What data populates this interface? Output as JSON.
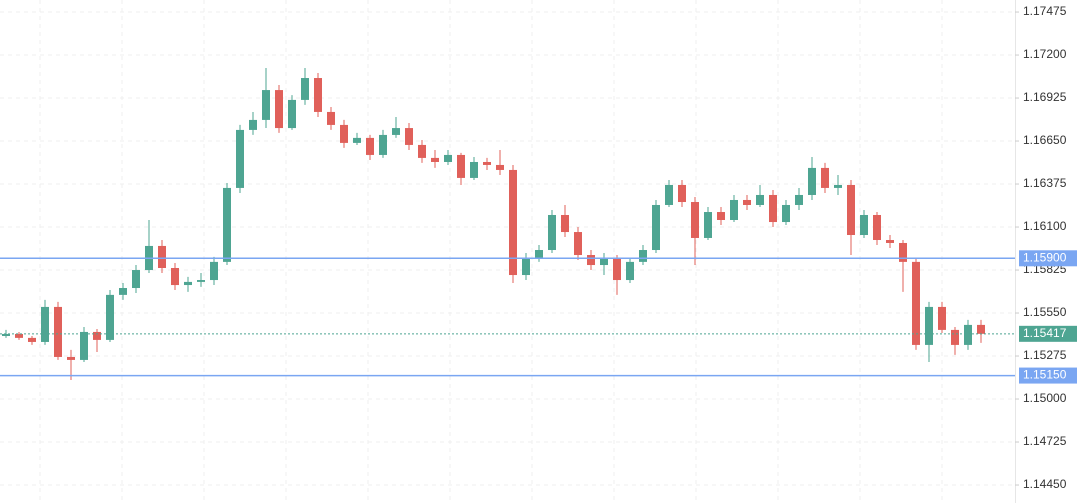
{
  "chart_data": {
    "type": "candlestick",
    "up_color": "#4ea592",
    "down_color": "#e0605a",
    "ylim": [
      1.14335,
      1.17552
    ],
    "yticks": [
      1.17475,
      {
        "value": 1.172,
        "label": "1.17200"
      },
      1.16925,
      {
        "value": 1.1665,
        "label": "1.16650"
      },
      1.16375,
      {
        "value": 1.161,
        "label": "1.16100"
      },
      1.15825,
      {
        "value": 1.1555,
        "label": "1.15550"
      },
      1.15275,
      {
        "value": 1.15,
        "label": "1.15000"
      },
      1.14725,
      {
        "value": 1.1445,
        "label": "1.14450"
      }
    ],
    "grid": true,
    "open": [
      1.15403,
      1.15416,
      1.15391,
      1.15365,
      1.15589,
      1.15269,
      1.1525,
      1.15429,
      1.15378,
      1.15666,
      1.1571,
      1.15825,
      1.15979,
      1.15838,
      1.15729,
      1.15749,
      1.15761,
      1.15877,
      1.1635,
      1.16721,
      1.16785,
      1.16976,
      1.16733,
      1.16913,
      1.17053,
      1.16836,
      1.16753,
      1.16638,
      1.1667,
      1.16561,
      1.16689,
      1.16733,
      1.16625,
      1.16542,
      1.16516,
      1.16561,
      1.16414,
      1.16516,
      1.16497,
      1.16465,
      1.15793,
      1.15902,
      1.15953,
      1.16177,
      1.16068,
      1.15921,
      1.15857,
      1.15902,
      1.15761,
      1.15877,
      1.15953,
      1.16241,
      1.16369,
      1.1626,
      1.1603,
      1.16196,
      1.16145,
      1.16273,
      1.16241,
      1.16305,
      1.16132,
      1.16241,
      1.16305,
      1.16478,
      1.1635,
      1.16369,
      1.16049,
      1.16177,
      1.16017,
      1.15998,
      1.15877,
      1.15346,
      1.15589,
      1.15442,
      1.15346,
      1.15474
    ],
    "high": [
      1.15442,
      1.15429,
      1.15403,
      1.15634,
      1.15621,
      1.15314,
      1.15461,
      1.15448,
      1.15697,
      1.15742,
      1.15857,
      1.16145,
      1.16017,
      1.1587,
      1.15781,
      1.15806,
      1.15909,
      1.16382,
      1.16753,
      1.16836,
      1.17117,
      1.17008,
      1.16944,
      1.17117,
      1.17085,
      1.16868,
      1.16785,
      1.16702,
      1.16689,
      1.16721,
      1.16804,
      1.16765,
      1.16657,
      1.16593,
      1.16593,
      1.16574,
      1.16548,
      1.16542,
      1.16593,
      1.16497,
      1.15934,
      1.15985,
      1.16209,
      1.16241,
      1.161,
      1.15953,
      1.15934,
      1.15921,
      1.15902,
      1.15985,
      1.16273,
      1.16401,
      1.16401,
      1.16292,
      1.16228,
      1.16228,
      1.16305,
      1.16305,
      1.16369,
      1.16337,
      1.16273,
      1.1635,
      1.16548,
      1.1651,
      1.16433,
      1.16401,
      1.16209,
      1.16196,
      1.16049,
      1.16017,
      1.15902,
      1.15621,
      1.15621,
      1.15461,
      1.15506,
      1.15506
    ],
    "low": [
      1.15391,
      1.15378,
      1.15346,
      1.15346,
      1.1525,
      1.15122,
      1.15237,
      1.15301,
      1.15365,
      1.15634,
      1.15678,
      1.15806,
      1.15806,
      1.15697,
      1.15685,
      1.15717,
      1.15729,
      1.15857,
      1.16318,
      1.16689,
      1.16733,
      1.16702,
      1.16721,
      1.16881,
      1.16804,
      1.16721,
      1.16606,
      1.16625,
      1.16529,
      1.16542,
      1.1667,
      1.16593,
      1.1651,
      1.16478,
      1.16497,
      1.16369,
      1.16401,
      1.16465,
      1.16433,
      1.15742,
      1.15761,
      1.15877,
      1.15934,
      1.16036,
      1.15889,
      1.15825,
      1.15793,
      1.15666,
      1.15742,
      1.15857,
      1.15934,
      1.16228,
      1.16228,
      1.15857,
      1.16017,
      1.16113,
      1.16132,
      1.16209,
      1.16228,
      1.161,
      1.16113,
      1.16209,
      1.16273,
      1.16318,
      1.16305,
      1.15921,
      1.1603,
      1.15985,
      1.15966,
      1.15685,
      1.15314,
      1.15237,
      1.15422,
      1.15282,
      1.15314,
      1.15359
    ],
    "close": [
      1.15416,
      1.15391,
      1.15365,
      1.15589,
      1.15269,
      1.1525,
      1.15429,
      1.15378,
      1.15666,
      1.1571,
      1.15825,
      1.15979,
      1.15838,
      1.15729,
      1.15749,
      1.15761,
      1.15877,
      1.1635,
      1.16721,
      1.16785,
      1.16976,
      1.16733,
      1.16913,
      1.17053,
      1.16836,
      1.16753,
      1.16638,
      1.1667,
      1.16561,
      1.16689,
      1.16733,
      1.16625,
      1.16542,
      1.16516,
      1.16561,
      1.16414,
      1.16516,
      1.16497,
      1.16465,
      1.15793,
      1.15902,
      1.15953,
      1.16177,
      1.16068,
      1.15921,
      1.15857,
      1.15902,
      1.15761,
      1.15877,
      1.15953,
      1.16241,
      1.16369,
      1.1626,
      1.1603,
      1.16196,
      1.16145,
      1.16273,
      1.16241,
      1.16305,
      1.16132,
      1.16241,
      1.16305,
      1.16478,
      1.1635,
      1.16369,
      1.16049,
      1.16177,
      1.16017,
      1.15998,
      1.15877,
      1.15346,
      1.15589,
      1.15442,
      1.15346,
      1.15474,
      1.15417
    ],
    "levels": [
      {
        "value": 1.159,
        "label": "1.15900",
        "color": "#7aa6f2"
      },
      {
        "value": 1.1515,
        "label": "1.15150",
        "color": "#7aa6f2"
      }
    ],
    "last_price": {
      "value": 1.15417,
      "color": "#4ea592"
    }
  }
}
